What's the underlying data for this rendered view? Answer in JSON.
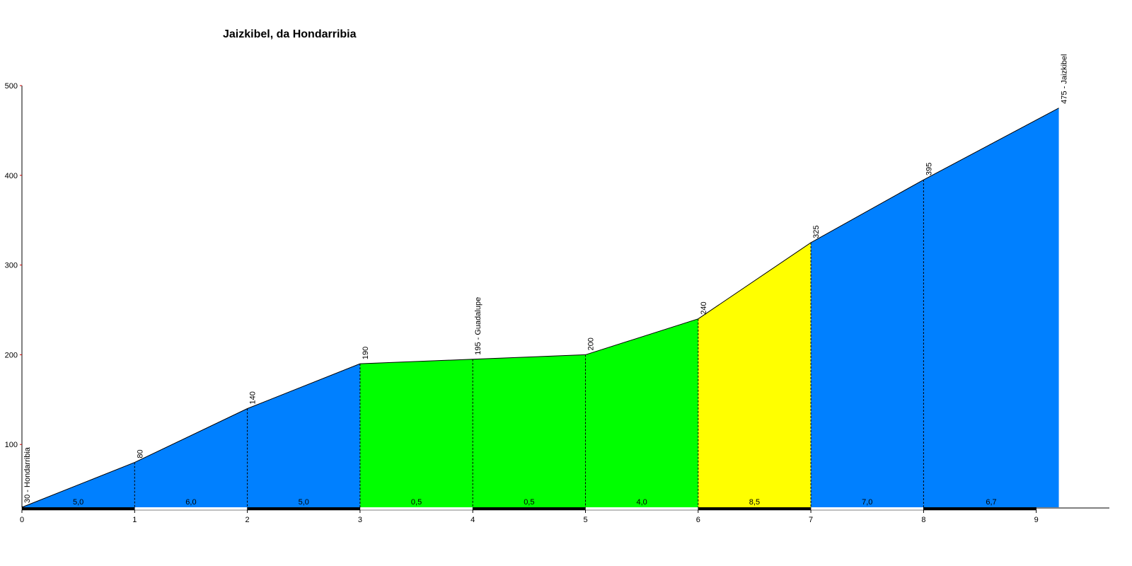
{
  "chart_data": {
    "type": "area",
    "title": "Jaizkibel, da Hondarribia",
    "x": [
      0,
      1,
      2,
      3,
      4,
      5,
      6,
      7,
      8,
      9.2
    ],
    "values": [
      30,
      80,
      140,
      190,
      195,
      200,
      240,
      325,
      395,
      475
    ],
    "value_labels": [
      "30 - Hondarribia",
      "80",
      "140",
      "190",
      "195 - Guadalupe",
      "200",
      "240",
      "325",
      "395",
      "475 - Jaizkibel"
    ],
    "gradients": [
      5.0,
      6.0,
      5.0,
      0.5,
      0.5,
      4.0,
      8.5,
      7.0,
      6.7
    ],
    "gradient_labels": [
      "5,0",
      "6,0",
      "5,0",
      "0,5",
      "0,5",
      "4,0",
      "8,5",
      "7,0",
      "6,7"
    ],
    "segment_colors": [
      "#0080ff",
      "#0080ff",
      "#0080ff",
      "#00ff00",
      "#00ff00",
      "#00ff00",
      "#ffff00",
      "#0080ff",
      "#0080ff"
    ],
    "xlim": [
      0,
      9.2
    ],
    "ylim": [
      30,
      500
    ],
    "xticks": [
      0,
      1,
      2,
      3,
      4,
      5,
      6,
      7,
      8,
      9
    ],
    "yticks": [
      100,
      200,
      300,
      400,
      500
    ]
  }
}
